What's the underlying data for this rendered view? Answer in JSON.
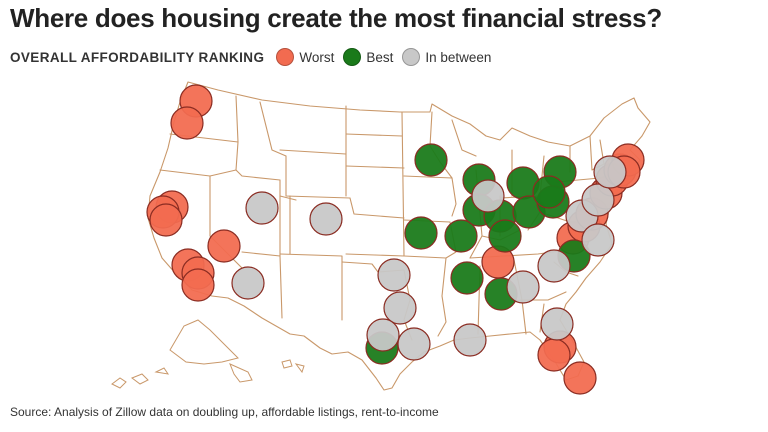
{
  "title": "Where does housing create the most financial stress?",
  "legend": {
    "heading": "OVERALL AFFORDABILITY RANKING",
    "items": [
      {
        "label": "Worst",
        "color": "#f26b50"
      },
      {
        "label": "Best",
        "color": "#1a7a1a"
      },
      {
        "label": "In between",
        "color": "#c8c8c8"
      }
    ]
  },
  "source": "Source: Analysis of Zillow data on doubling up, affordable listings, rent-to-income",
  "map": {
    "region": "Contiguous United States",
    "state_border_color": "#c9986a",
    "marker_outline_color": "#8a2c22",
    "marker_count": 62
  }
}
